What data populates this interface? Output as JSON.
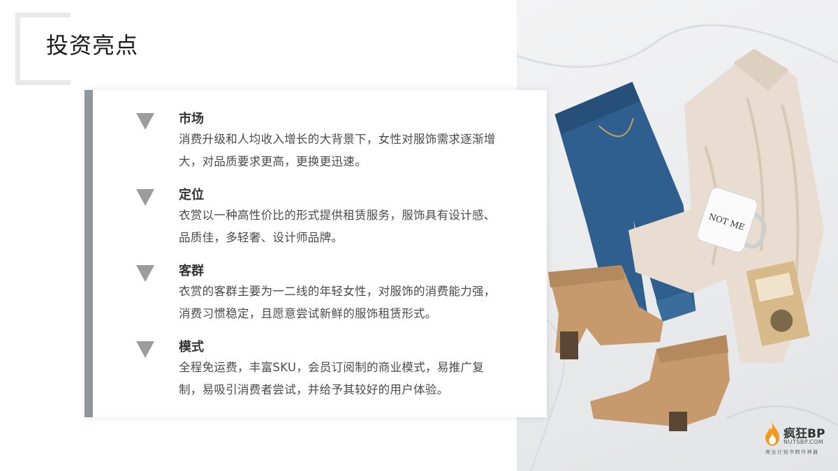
{
  "page": {
    "title": "投资亮点"
  },
  "highlights": [
    {
      "title": "市场",
      "desc": "消费升级和人均收入增长的大背景下，女性对服饰需求逐渐增大，对品质要求更高，更换更迅速。"
    },
    {
      "title": "定位",
      "desc": "衣赏以一种高性价比的形式提供租赁服务，服饰具有设计感、品质佳，多轻奢、设计师品牌。"
    },
    {
      "title": "客群",
      "desc": "衣赏的客群主要为一二线的年轻女性，对服饰的消费能力强，消费习惯稳定，且愿意尝试新鲜的服饰租赁形式。"
    },
    {
      "title": "模式",
      "desc": "全程免运费，丰富SKU，会员订阅制的商业模式，易推广复制，易吸引消费者尝试，并给予其较好的用户体验。"
    }
  ],
  "photo": {
    "mug_text": "NOT ME"
  },
  "brand": {
    "name": "疯狂BP",
    "url": "NUTSBP.COM",
    "slogan": "商业计划书制作神器"
  },
  "colors": {
    "accent_bar": "#8f979c",
    "bullet": "#9c9c9c",
    "brand_orange": "#f39a1e"
  }
}
